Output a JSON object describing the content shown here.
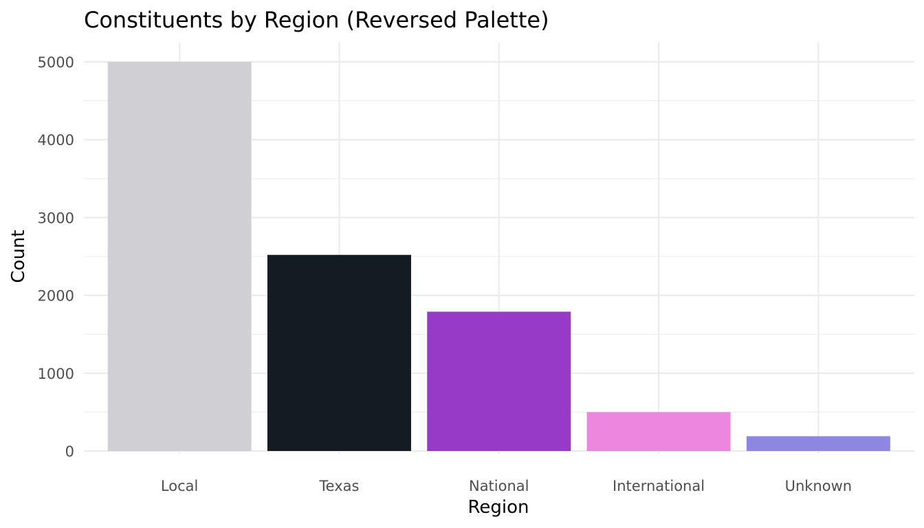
{
  "chart_data": {
    "type": "bar",
    "title": "Constituents by Region (Reversed Palette)",
    "xlabel": "Region",
    "ylabel": "Count",
    "categories": [
      "Local",
      "Texas",
      "National",
      "International",
      "Unknown"
    ],
    "values": [
      5000,
      2520,
      1790,
      500,
      190
    ],
    "colors": [
      "#d0cfd4",
      "#131b23",
      "#963ac7",
      "#ed86de",
      "#8d87e2"
    ],
    "ylim": [
      0,
      5000
    ],
    "yticks": [
      0,
      1000,
      2000,
      3000,
      4000,
      5000
    ],
    "ytick_labels": [
      "0",
      "1000",
      "2000",
      "3000",
      "4000",
      "5000"
    ],
    "grid": true,
    "legend": "none"
  }
}
